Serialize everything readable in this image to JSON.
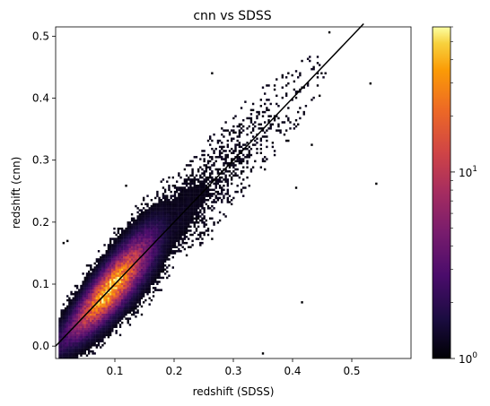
{
  "chart_data": {
    "type": "heatmap",
    "subtype": "2d-histogram",
    "title": "cnn vs SDSS",
    "xlabel": "redshift (SDSS)",
    "ylabel": "redshift (cnn)",
    "xlim": [
      0.0,
      0.6
    ],
    "ylim": [
      -0.02,
      0.515
    ],
    "xticks": [
      0.1,
      0.2,
      0.3,
      0.4,
      0.5
    ],
    "xtick_labels": [
      "0.1",
      "0.2",
      "0.3",
      "0.4",
      "0.5"
    ],
    "yticks": [
      0.0,
      0.1,
      0.2,
      0.3,
      0.4,
      0.5
    ],
    "ytick_labels": [
      "0.0",
      "0.1",
      "0.2",
      "0.3",
      "0.4",
      "0.5"
    ],
    "reference_line": {
      "name": "y = x",
      "x": [
        0.0,
        0.52
      ],
      "y": [
        0.0,
        0.52
      ],
      "color": "#000000"
    },
    "density": {
      "ridge_x": [
        0.005,
        0.6
      ],
      "peak_x": 0.09,
      "peak_y": 0.095,
      "spread_y": 0.03,
      "description_of_bins": "counts per 2D bin"
    },
    "colorbar": {
      "scale": "log",
      "colormap": "inferno",
      "min": 1,
      "max": 60,
      "ticks": [
        1,
        10
      ],
      "tick_labels": [
        "10^0",
        "10^1"
      ]
    },
    "grid": false
  }
}
